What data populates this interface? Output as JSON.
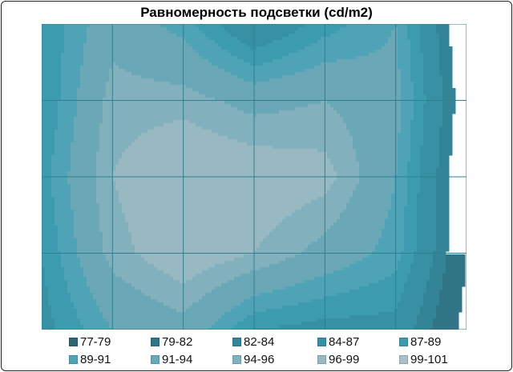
{
  "chart_data": {
    "type": "heatmap",
    "style": "filled-contour",
    "title": "Равномерность подсветки (cd/m2)",
    "grid": true,
    "legend_placement": "bottom",
    "z": [
      [
        87,
        93,
        90,
        84,
        88,
        91,
        79
      ],
      [
        87,
        95,
        95,
        93,
        94,
        92,
        80
      ],
      [
        88,
        96,
        99,
        98,
        97,
        91,
        79
      ],
      [
        87,
        95,
        98,
        96,
        93,
        90,
        79
      ],
      [
        86,
        91,
        93,
        87,
        86,
        86,
        78
      ]
    ],
    "bands": [
      {
        "label": "77-79",
        "min": 77,
        "max": 79,
        "color": "#2b6674"
      },
      {
        "label": "79-82",
        "min": 79,
        "max": 82,
        "color": "#2f7585"
      },
      {
        "label": "82-84",
        "min": 82,
        "max": 84,
        "color": "#338497"
      },
      {
        "label": "84-87",
        "min": 84,
        "max": 87,
        "color": "#3790a3"
      },
      {
        "label": "87-89",
        "min": 87,
        "max": 89,
        "color": "#3d9bb0"
      },
      {
        "label": "89-91",
        "min": 89,
        "max": 91,
        "color": "#4fa3b6"
      },
      {
        "label": "91-94",
        "min": 91,
        "max": 94,
        "color": "#6aa8b8"
      },
      {
        "label": "94-96",
        "min": 94,
        "max": 96,
        "color": "#83b0bd"
      },
      {
        "label": "96-99",
        "min": 96,
        "max": 99,
        "color": "#98b8c2"
      },
      {
        "label": "99-101",
        "min": 99,
        "max": 101,
        "color": "#a8c1c9"
      }
    ],
    "grid_color": "#2f7f8f"
  }
}
